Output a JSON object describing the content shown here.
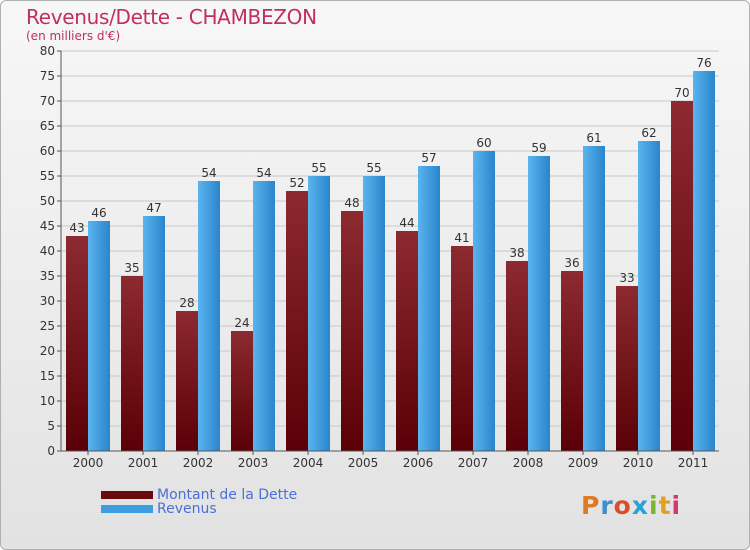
{
  "header": {
    "title": "Revenus/Dette - CHAMBEZON",
    "subtitle": "(en milliers d'€)"
  },
  "legend": {
    "debt_label": "Montant de la Dette",
    "revenue_label": "Revenus"
  },
  "logo": {
    "text": "Proxiti",
    "letters": [
      "P",
      "r",
      "o",
      "x",
      "i",
      "t",
      "i"
    ],
    "colors": [
      "#e07a20",
      "#3c8fd0",
      "#d94f2a",
      "#2b9fd8",
      "#7ab530",
      "#e0a020",
      "#d03a6a"
    ]
  },
  "colors": {
    "debt": "#7a0f14",
    "revenue": "#3d9de0",
    "title": "#c0305a"
  },
  "chart_data": {
    "type": "bar",
    "categories": [
      "2000",
      "2001",
      "2002",
      "2003",
      "2004",
      "2005",
      "2006",
      "2007",
      "2008",
      "2009",
      "2010",
      "2011"
    ],
    "series": [
      {
        "name": "Montant de la Dette",
        "values": [
          43,
          35,
          28,
          24,
          52,
          48,
          44,
          41,
          38,
          36,
          33,
          70
        ]
      },
      {
        "name": "Revenus",
        "values": [
          46,
          47,
          54,
          54,
          55,
          55,
          57,
          60,
          59,
          61,
          62,
          76
        ]
      }
    ],
    "title": "Revenus/Dette - CHAMBEZON",
    "subtitle": "(en milliers d'€)",
    "ylim": [
      0,
      80
    ],
    "yticks": [
      0,
      5,
      10,
      15,
      20,
      25,
      30,
      35,
      40,
      45,
      50,
      55,
      60,
      65,
      70,
      75,
      80
    ],
    "grid": true,
    "legend_position": "bottom-left"
  }
}
